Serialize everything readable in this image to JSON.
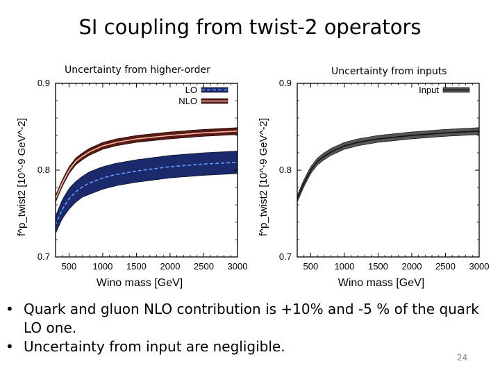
{
  "slide": {
    "title": "SI coupling from twist-2 operators",
    "page_number": "24",
    "bullets": [
      "Quark and gluon NLO contribution is +10% and -5 % of the quark LO one.",
      "Uncertainty from input are negligible."
    ]
  },
  "chart_data": [
    {
      "type": "line",
      "title": "Uncertainty from higher-order",
      "xlabel": "Wino mass [GeV]",
      "ylabel": "f^p_twist2 [10^-9 GeV^-2]",
      "xlim": [
        300,
        3000
      ],
      "ylim": [
        0.7,
        0.9
      ],
      "xticks": [
        500,
        1000,
        1500,
        2000,
        2500,
        3000
      ],
      "yticks": [
        0.7,
        0.8,
        0.9
      ],
      "x": [
        300,
        400,
        500,
        600,
        700,
        800,
        1000,
        1200,
        1500,
        2000,
        2500,
        3000
      ],
      "series": [
        {
          "name": "LO",
          "color": "#1a2a6c",
          "line_color": "#6f9bff",
          "values": [
            0.737,
            0.755,
            0.767,
            0.775,
            0.781,
            0.785,
            0.791,
            0.795,
            0.799,
            0.804,
            0.807,
            0.809
          ],
          "band": [
            0.01,
            0.011,
            0.012,
            0.012,
            0.012,
            0.013,
            0.013,
            0.013,
            0.013,
            0.013,
            0.013,
            0.013
          ]
        },
        {
          "name": "NLO",
          "color": "#5a1a14",
          "line_color": "#f4b8a8",
          "values": [
            0.767,
            0.785,
            0.8,
            0.81,
            0.816,
            0.821,
            0.828,
            0.832,
            0.836,
            0.84,
            0.843,
            0.845
          ],
          "band": [
            0.004,
            0.004,
            0.004,
            0.004,
            0.004,
            0.004,
            0.004,
            0.004,
            0.004,
            0.004,
            0.004,
            0.004
          ]
        }
      ]
    },
    {
      "type": "line",
      "title": "Uncertainty from inputs",
      "xlabel": "Wino mass [GeV]",
      "ylabel": "f^p_twist2 [10^-9 GeV^-2]",
      "xlim": [
        300,
        3000
      ],
      "ylim": [
        0.7,
        0.9
      ],
      "xticks": [
        500,
        1000,
        1500,
        2000,
        2500,
        3000
      ],
      "yticks": [
        0.7,
        0.8,
        0.9
      ],
      "x": [
        300,
        400,
        500,
        600,
        700,
        800,
        1000,
        1200,
        1500,
        2000,
        2500,
        3000
      ],
      "series": [
        {
          "name": "Input",
          "color": "#555555",
          "line_color": "#111111",
          "values": [
            0.767,
            0.785,
            0.8,
            0.81,
            0.816,
            0.821,
            0.828,
            0.832,
            0.836,
            0.84,
            0.843,
            0.845
          ],
          "band": [
            0.004,
            0.004,
            0.004,
            0.004,
            0.004,
            0.004,
            0.004,
            0.004,
            0.004,
            0.004,
            0.004,
            0.004
          ]
        }
      ]
    }
  ]
}
